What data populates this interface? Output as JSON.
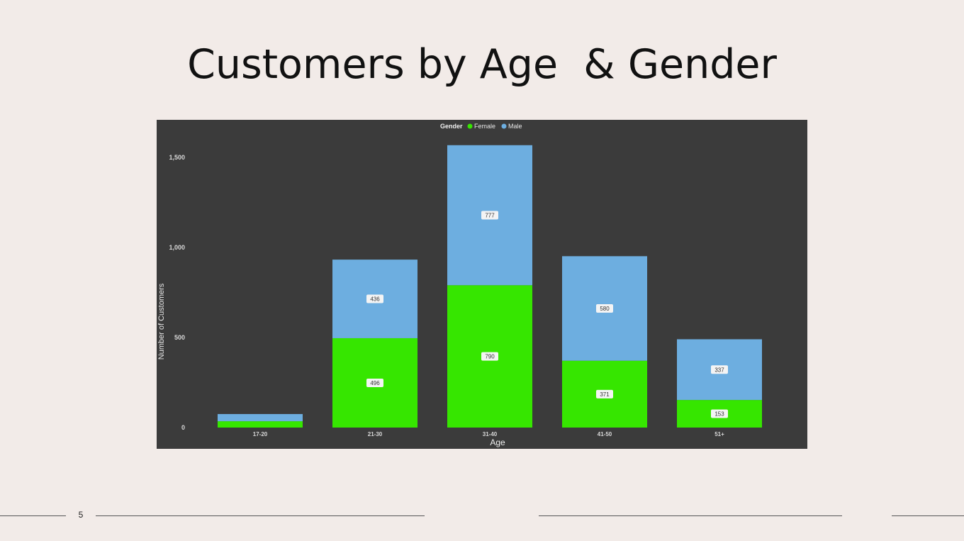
{
  "slide": {
    "title": "Customers by Age  & Gender",
    "page_number": "5"
  },
  "chart_data": {
    "type": "bar",
    "stacked": true,
    "xlabel": "Age",
    "ylabel": "Number of Customers",
    "categories": [
      "17-20",
      "21-30",
      "31-40",
      "41-50",
      "51+"
    ],
    "series": [
      {
        "name": "Female",
        "color": "#36e600",
        "values": [
          35,
          496,
          790,
          371,
          153
        ],
        "labels": [
          "",
          "496",
          "790",
          "371",
          "153"
        ]
      },
      {
        "name": "Male",
        "color": "#6daee0",
        "values": [
          40,
          436,
          777,
          580,
          337
        ],
        "labels": [
          "",
          "436",
          "777",
          "580",
          "337"
        ]
      }
    ],
    "legend": {
      "title": "Gender",
      "placement": "top-center"
    },
    "ylim": [
      0,
      1570
    ],
    "yticks": [
      0,
      500,
      1000,
      1500
    ],
    "ytick_labels": [
      "0",
      "500",
      "1,000",
      "1,500"
    ],
    "grid": false,
    "background": "#3b3b3b"
  }
}
